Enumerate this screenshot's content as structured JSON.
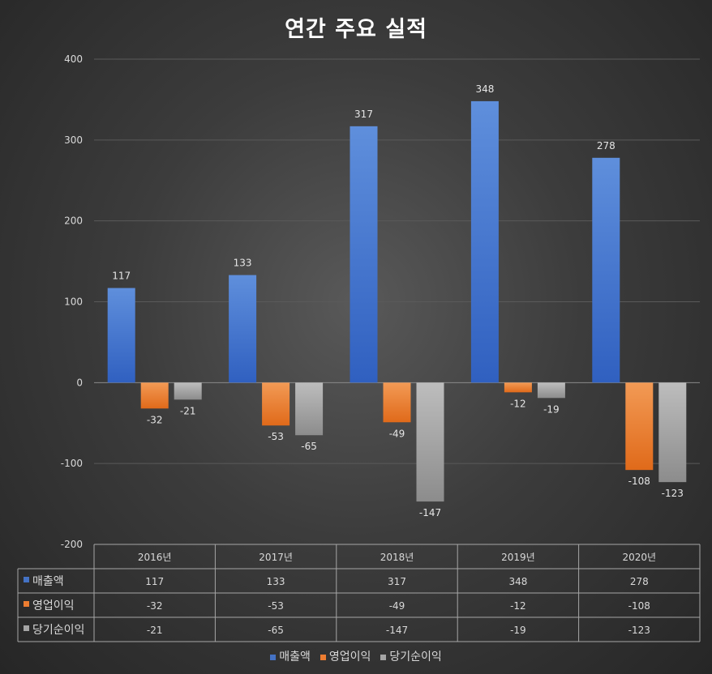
{
  "chart_data": {
    "type": "bar",
    "title": "연간 주요 실적",
    "categories": [
      "2016년",
      "2017년",
      "2018년",
      "2019년",
      "2020년"
    ],
    "series": [
      {
        "name": "매출액",
        "color": "#4472c4",
        "values": [
          117,
          133,
          317,
          348,
          278
        ]
      },
      {
        "name": "영업이익",
        "color": "#ed7d31",
        "values": [
          -32,
          -53,
          -49,
          -12,
          -108
        ]
      },
      {
        "name": "당기순이익",
        "color": "#a5a5a5",
        "values": [
          -21,
          -65,
          -147,
          -19,
          -123
        ]
      }
    ],
    "ylim": [
      -200,
      400
    ],
    "yticks": [
      400,
      300,
      200,
      100,
      0,
      -100,
      -200
    ],
    "grid": true,
    "legend": "bottom",
    "data_table": true
  }
}
